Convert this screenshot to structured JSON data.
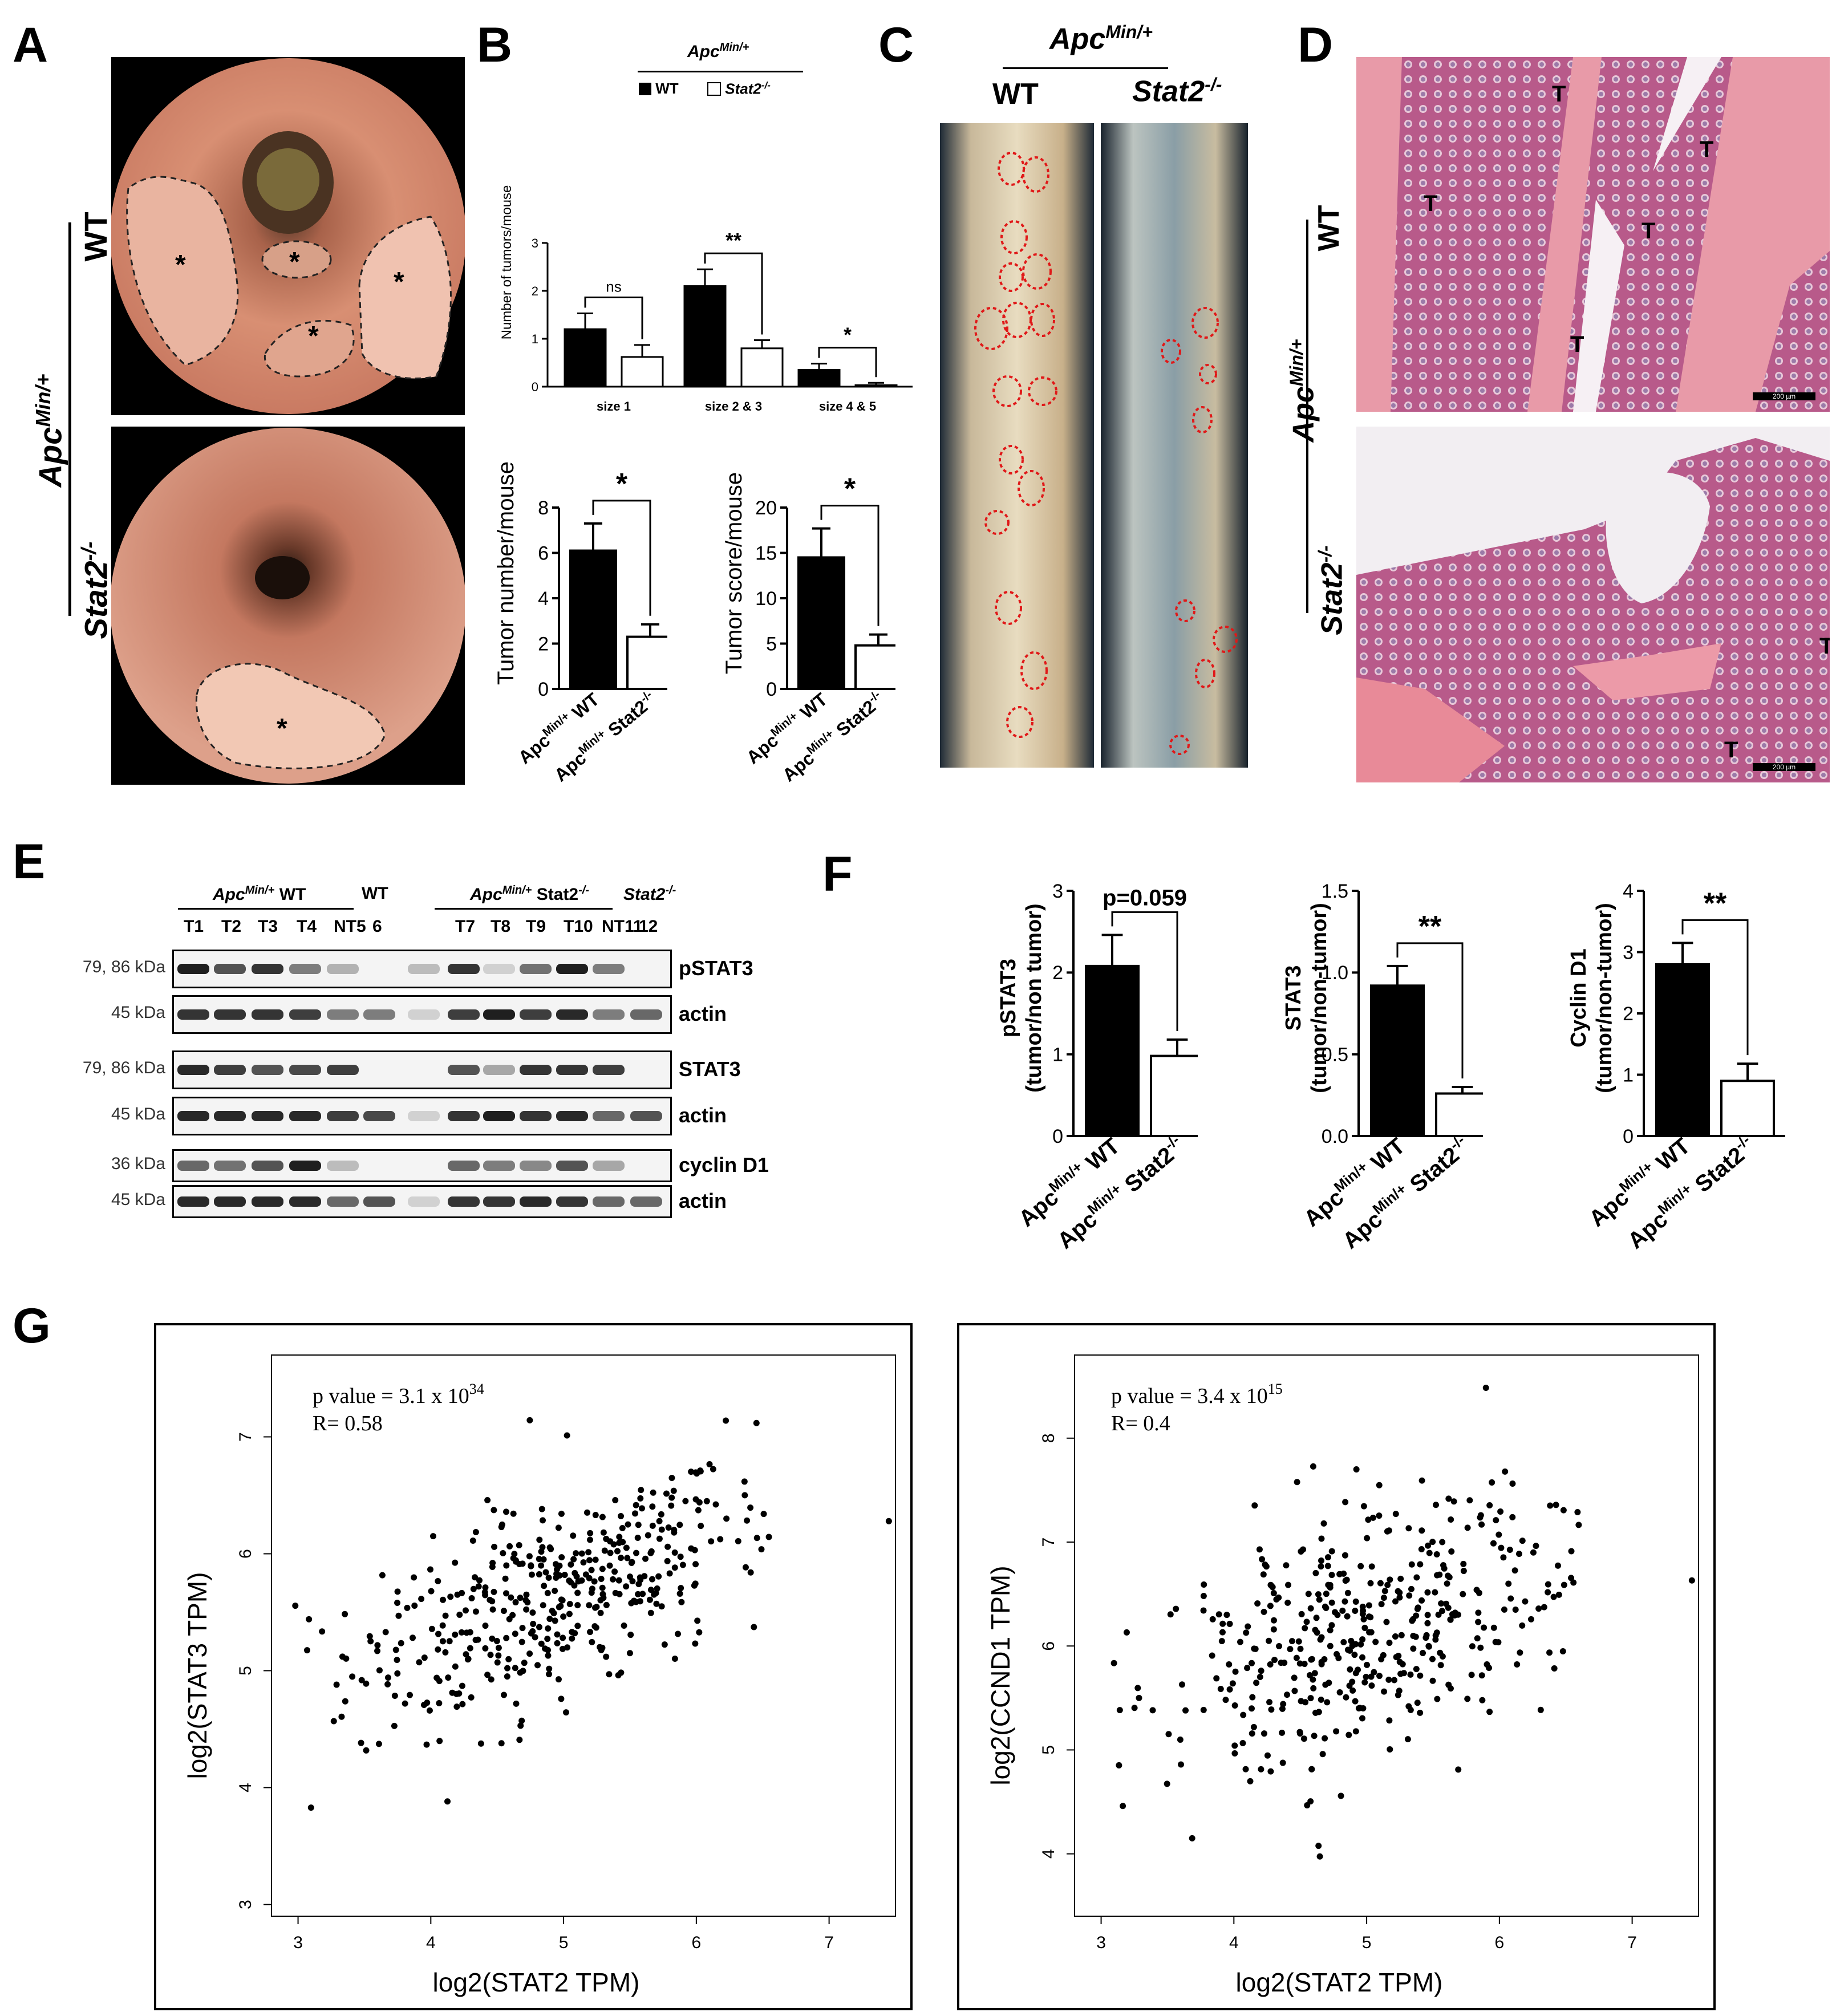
{
  "panel_letters": [
    "A",
    "B",
    "C",
    "D",
    "E",
    "F",
    "G"
  ],
  "panel_a": {
    "genotype_main": "Apc",
    "genotype_sup": "Min/+",
    "row_top_label": "WT",
    "row_bottom_label_main": "Stat2",
    "row_bottom_label_sup": "-/-",
    "tumor_marker": "*"
  },
  "panel_b": {
    "legend_title_main": "Apc",
    "legend_title_sup": "Min/+",
    "legend_wt": "WT",
    "legend_ko_main": "Stat2",
    "legend_ko_sup": "-/-",
    "size_chart": {
      "type": "bar",
      "ylabel": "Number of tumors/mouse",
      "categories": [
        "size 1",
        "size 2 & 3",
        "size 4 & 5"
      ],
      "yticks": [
        "0",
        "1",
        "2",
        "3"
      ],
      "ylim": [
        0,
        3
      ],
      "series": [
        {
          "name": "WT",
          "values": [
            1.2,
            2.1,
            0.35
          ],
          "errors": [
            0.33,
            0.35,
            0.13
          ]
        },
        {
          "name": "Stat2-/-",
          "values": [
            0.62,
            0.8,
            0.03
          ],
          "errors": [
            0.25,
            0.17,
            0.05
          ]
        }
      ],
      "significance": [
        "ns",
        "**",
        "*"
      ]
    },
    "number_chart": {
      "type": "bar",
      "ylabel": "Tumor number/mouse",
      "yticks": [
        "0",
        "2",
        "4",
        "6",
        "8"
      ],
      "ylim": [
        0,
        8
      ],
      "values": [
        6.1,
        2.3
      ],
      "errors": [
        1.2,
        0.55
      ],
      "significance": "*"
    },
    "score_chart": {
      "type": "bar",
      "ylabel": "Tumor score/mouse",
      "yticks": [
        "0",
        "5",
        "10",
        "15",
        "20"
      ],
      "ylim": [
        0,
        20
      ],
      "values": [
        14.5,
        4.8
      ],
      "errors": [
        3.2,
        1.2
      ],
      "significance": "*"
    },
    "x_categories": [
      {
        "main": "Apc",
        "sup": "Min/+",
        "rest": " WT"
      },
      {
        "main": "Apc",
        "sup": "Min/+",
        "rest": " Stat2",
        "sup2": "-/-"
      }
    ]
  },
  "panel_c": {
    "title_main": "Apc",
    "title_sup": "Min/+",
    "col_wt": "WT",
    "col_ko_main": "Stat2",
    "col_ko_sup": "-/-"
  },
  "panel_d": {
    "genotype_main": "Apc",
    "genotype_sup": "Min/+",
    "row_top_label": "WT",
    "row_bottom_label_main": "Stat2",
    "row_bottom_label_sup": "-/-",
    "tumor_label": "T",
    "scale_bar": "200 µm"
  },
  "panel_e": {
    "group1_main": "Apc",
    "group1_sup": "Min/+",
    "group1_rest": " WT",
    "group2_label": "WT",
    "group3_main": "Apc",
    "group3_sup": "Min/+",
    "group3_rest": " Stat2",
    "group3_sup2": "-/-",
    "group4_main": "Stat2",
    "group4_sup": "-/-",
    "lanes_left": [
      "T1",
      "T2",
      "T3",
      "T4",
      "NT5",
      "6"
    ],
    "lanes_right": [
      "T7",
      "T8",
      "T9",
      "T10",
      "NT11",
      "12"
    ],
    "blots": [
      {
        "kda": "79, 86 kDa",
        "label": "pSTAT3"
      },
      {
        "kda": "45 kDa",
        "label": "actin"
      },
      {
        "kda": "79, 86 kDa",
        "label": "STAT3"
      },
      {
        "kda": "45 kDa",
        "label": "actin"
      },
      {
        "kda": "36 kDa",
        "label": "cyclin D1"
      },
      {
        "kda": "45 kDa",
        "label": "actin"
      }
    ]
  },
  "panel_f": {
    "charts": [
      {
        "type": "bar",
        "ylabel_line1": "pSTAT3",
        "ylabel_line2": "(tumor/non tumor)",
        "yticks": [
          "0",
          "1",
          "2",
          "3"
        ],
        "ylim": [
          0,
          3
        ],
        "values": [
          2.08,
          0.98
        ],
        "errors": [
          0.38,
          0.2
        ],
        "significance": "p=0.059"
      },
      {
        "type": "bar",
        "ylabel_line1": "STAT3",
        "ylabel_line2": "(tumor/non-tumor)",
        "yticks": [
          "0.0",
          "0.5",
          "1.0",
          "1.5"
        ],
        "ylim": [
          0,
          1.5
        ],
        "values": [
          0.92,
          0.26
        ],
        "errors": [
          0.12,
          0.04
        ],
        "significance": "**"
      },
      {
        "type": "bar",
        "ylabel_line1": "Cyclin D1",
        "ylabel_line2": "(tumor/non-tumor)",
        "yticks": [
          "0",
          "1",
          "2",
          "3",
          "4"
        ],
        "ylim": [
          0,
          4
        ],
        "values": [
          2.8,
          0.9
        ],
        "errors": [
          0.35,
          0.28
        ],
        "significance": "**"
      }
    ]
  },
  "panel_g": {
    "left": {
      "type": "scatter",
      "stat_line1": "p value = 3.1 x 10",
      "stat_exp1": "34",
      "stat_line2": "R= 0.58",
      "xlabel": "log2(STAT2 TPM)",
      "ylabel": "log2(STAT3 TPM)",
      "xticks": [
        "3",
        "4",
        "5",
        "6",
        "7"
      ],
      "yticks": [
        "3",
        "4",
        "5",
        "6",
        "7"
      ],
      "xlim": [
        2.8,
        7.5
      ],
      "ylim": [
        2.9,
        7.7
      ]
    },
    "right": {
      "type": "scatter",
      "stat_line1": "p value = 3.4 x 10",
      "stat_exp1": "15",
      "stat_line2": "R= 0.4",
      "xlabel": "log2(STAT2 TPM)",
      "ylabel": "log2(CCND1 TPM)",
      "xticks": [
        "3",
        "4",
        "5",
        "6",
        "7"
      ],
      "yticks": [
        "4",
        "5",
        "6",
        "7",
        "8"
      ],
      "xlim": [
        2.8,
        7.5
      ],
      "ylim": [
        3.4,
        8.8
      ]
    }
  },
  "chart_data": [
    {
      "type": "bar",
      "ylabel": "Number of tumors/mouse",
      "categories": [
        "size 1",
        "size 2 & 3",
        "size 4 & 5"
      ],
      "series": [
        {
          "name": "WT",
          "values": [
            1.2,
            2.1,
            0.35
          ]
        },
        {
          "name": "Stat2-/-",
          "values": [
            0.62,
            0.8,
            0.03
          ]
        }
      ],
      "ylim": [
        0,
        3
      ]
    },
    {
      "type": "bar",
      "ylabel": "Tumor number/mouse",
      "values": [
        6.1,
        2.3
      ],
      "ylim": [
        0,
        8
      ]
    },
    {
      "type": "bar",
      "ylabel": "Tumor score/mouse",
      "values": [
        14.5,
        4.8
      ],
      "ylim": [
        0,
        20
      ]
    },
    {
      "type": "bar",
      "ylabel": "pSTAT3 (tumor/non tumor)",
      "values": [
        2.08,
        0.98
      ],
      "ylim": [
        0,
        3
      ]
    },
    {
      "type": "bar",
      "ylabel": "STAT3 (tumor/non-tumor)",
      "values": [
        0.92,
        0.26
      ],
      "ylim": [
        0,
        1.5
      ]
    },
    {
      "type": "bar",
      "ylabel": "Cyclin D1 (tumor/non-tumor)",
      "values": [
        2.8,
        0.9
      ],
      "ylim": [
        0,
        4
      ]
    },
    {
      "type": "scatter",
      "xlabel": "log2(STAT2 TPM)",
      "ylabel": "log2(STAT3 TPM)",
      "xlim": [
        2.8,
        7.5
      ],
      "ylim": [
        2.9,
        7.7
      ],
      "trend": {
        "r": 0.58
      }
    },
    {
      "type": "scatter",
      "xlabel": "log2(STAT2 TPM)",
      "ylabel": "log2(CCND1 TPM)",
      "xlim": [
        2.8,
        7.5
      ],
      "ylim": [
        3.4,
        8.8
      ],
      "trend": {
        "r": 0.4
      }
    }
  ]
}
